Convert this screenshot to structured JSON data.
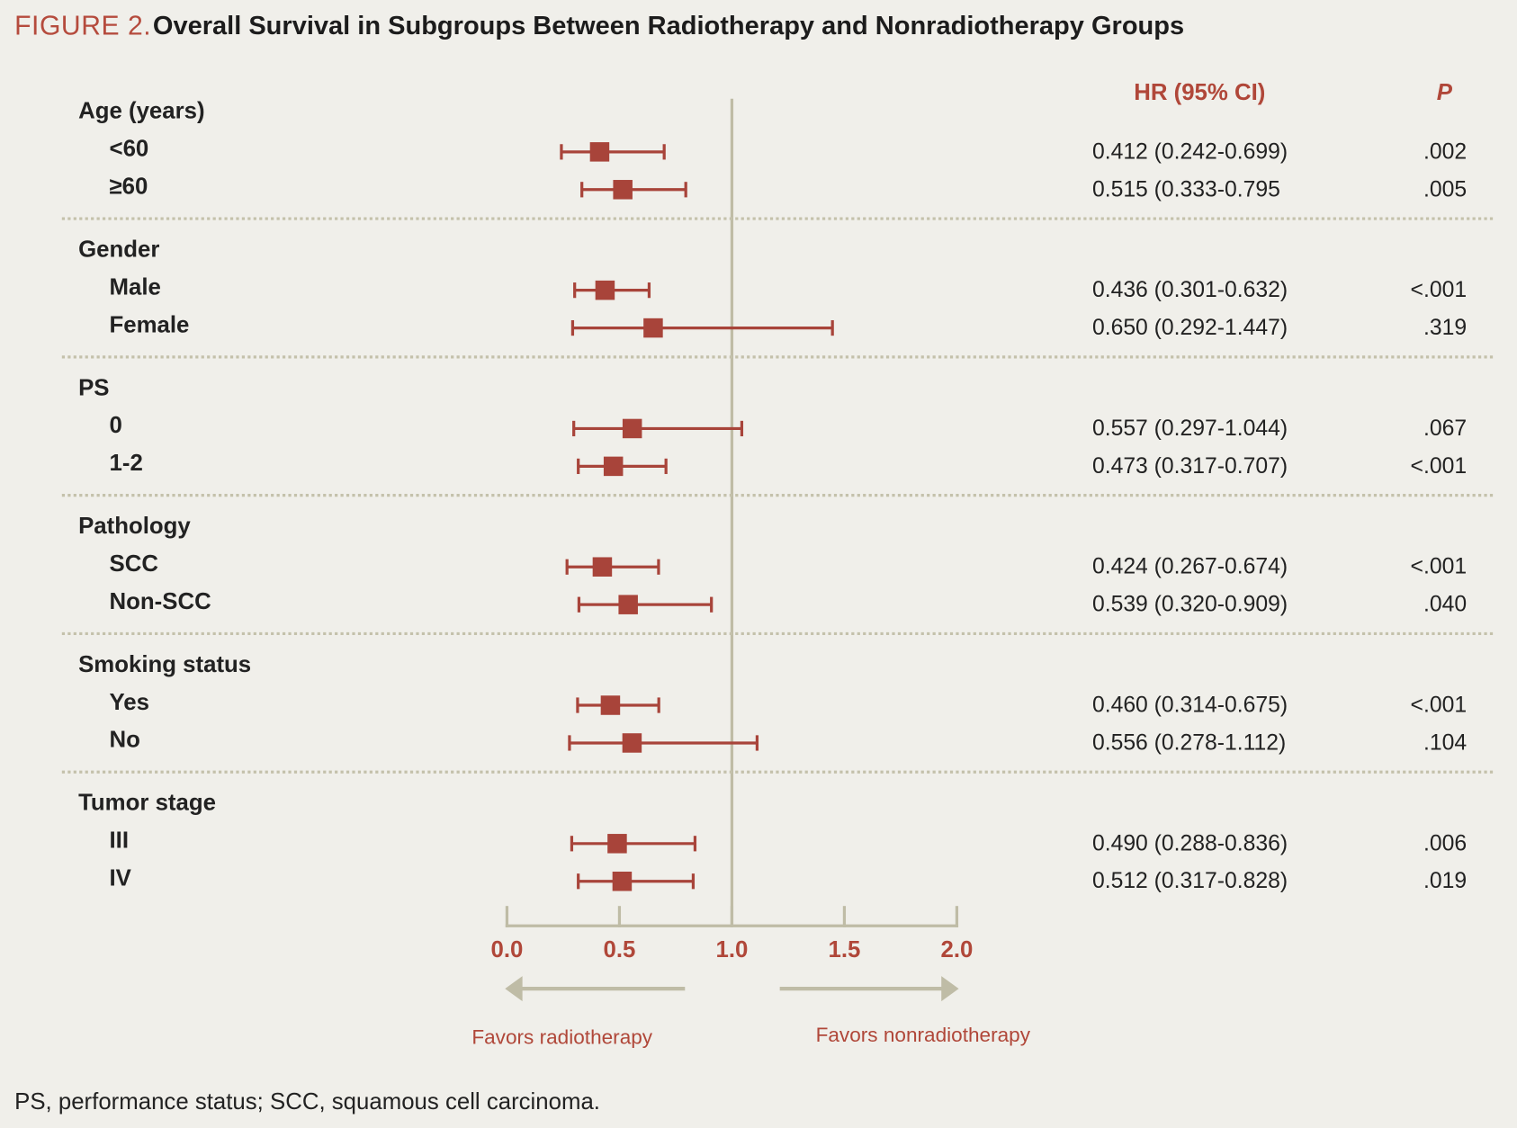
{
  "colors": {
    "background": "#f0efea",
    "marker": "#a8443a",
    "accent": "#b04739",
    "axis": "#bfbca6",
    "separator": "#c4c1ab",
    "text": "#1e1e1e"
  },
  "chart_data": {
    "type": "scatter",
    "figure_label": "FIGURE 2.",
    "title": "Overall Survival in Subgroups Between Radiotherapy and Nonradiotherapy Groups",
    "xlim": [
      0.0,
      2.0
    ],
    "xticks": [
      0.0,
      0.5,
      1.0,
      1.5,
      2.0
    ],
    "xtick_labels": [
      "0.0",
      "0.5",
      "1.0",
      "1.5",
      "2.0"
    ],
    "reference_line": 1.0,
    "column_headers": {
      "hr_ci": "HR (95% CI)",
      "p": "P"
    },
    "favors": {
      "left": "Favors radiotherapy",
      "right": "Favors nonradiotherapy"
    },
    "groups": [
      {
        "name": "Age (years)",
        "rows": [
          {
            "label": "<60",
            "hr": 0.412,
            "ci": [
              0.242,
              0.699
            ],
            "hr_ci": "0.412 (0.242-0.699)",
            "p": ".002"
          },
          {
            "label": "≥60",
            "hr": 0.515,
            "ci": [
              0.333,
              0.795
            ],
            "hr_ci": "0.515 (0.333-0.795",
            "p": ".005"
          }
        ]
      },
      {
        "name": "Gender",
        "rows": [
          {
            "label": "Male",
            "hr": 0.436,
            "ci": [
              0.301,
              0.632
            ],
            "hr_ci": "0.436 (0.301-0.632)",
            "p": "<.001"
          },
          {
            "label": "Female",
            "hr": 0.65,
            "ci": [
              0.292,
              1.447
            ],
            "hr_ci": "0.650 (0.292-1.447)",
            "p": ".319"
          }
        ]
      },
      {
        "name": "PS",
        "rows": [
          {
            "label": "0",
            "hr": 0.557,
            "ci": [
              0.297,
              1.044
            ],
            "hr_ci": "0.557 (0.297-1.044)",
            "p": ".067"
          },
          {
            "label": "1-2",
            "hr": 0.473,
            "ci": [
              0.317,
              0.707
            ],
            "hr_ci": "0.473 (0.317-0.707)",
            "p": "<.001"
          }
        ]
      },
      {
        "name": "Pathology",
        "rows": [
          {
            "label": "SCC",
            "hr": 0.424,
            "ci": [
              0.267,
              0.674
            ],
            "hr_ci": "0.424 (0.267-0.674)",
            "p": "<.001"
          },
          {
            "label": "Non-SCC",
            "hr": 0.539,
            "ci": [
              0.32,
              0.909
            ],
            "hr_ci": "0.539 (0.320-0.909)",
            "p": ".040"
          }
        ]
      },
      {
        "name": "Smoking status",
        "rows": [
          {
            "label": "Yes",
            "hr": 0.46,
            "ci": [
              0.314,
              0.675
            ],
            "hr_ci": "0.460 (0.314-0.675)",
            "p": "<.001"
          },
          {
            "label": "No",
            "hr": 0.556,
            "ci": [
              0.278,
              1.112
            ],
            "hr_ci": "0.556 (0.278-1.112)",
            "p": ".104"
          }
        ]
      },
      {
        "name": "Tumor stage",
        "rows": [
          {
            "label": "III",
            "hr": 0.49,
            "ci": [
              0.288,
              0.836
            ],
            "hr_ci": "0.490 (0.288-0.836)",
            "p": ".006"
          },
          {
            "label": "IV",
            "hr": 0.512,
            "ci": [
              0.317,
              0.828
            ],
            "hr_ci": "0.512 (0.317-0.828)",
            "p": ".019"
          }
        ]
      }
    ]
  },
  "footnote": "PS, performance status; SCC, squamous cell carcinoma."
}
